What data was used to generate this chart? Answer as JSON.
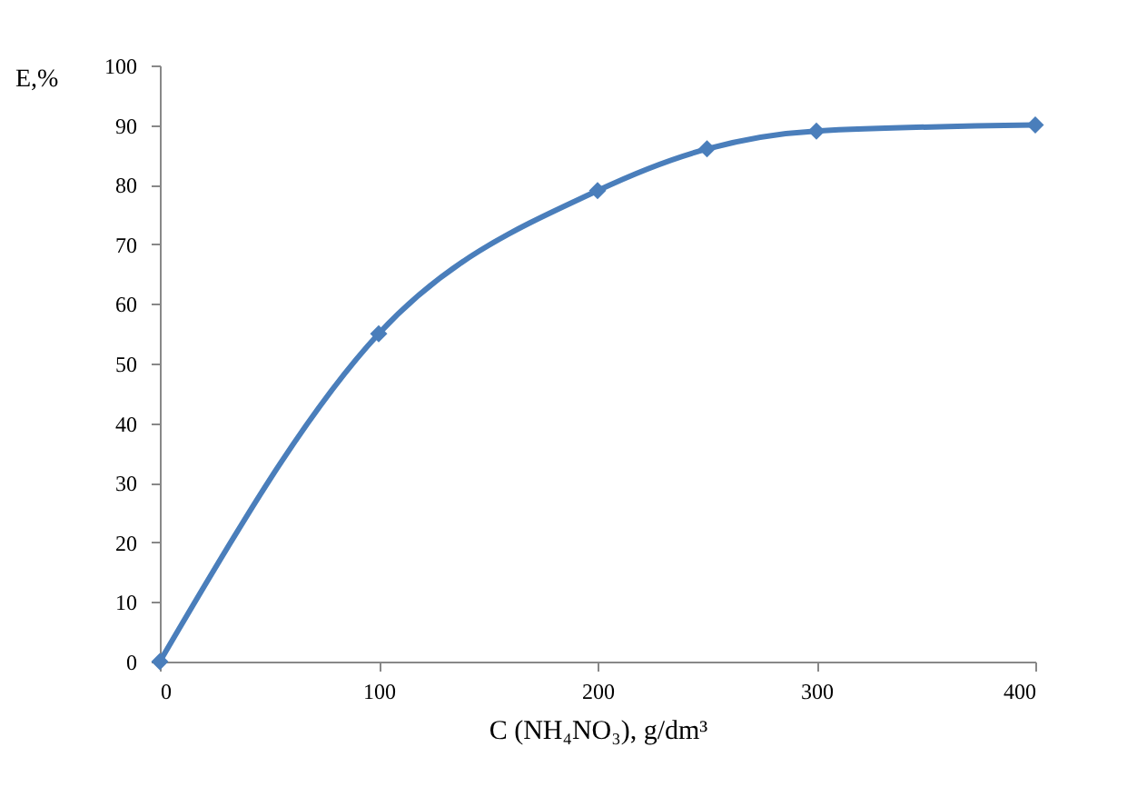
{
  "chart_data": {
    "type": "line",
    "xlabel": "C (NH₄NO₃), g/dm³",
    "ylabel": "E,%",
    "x": [
      0,
      100,
      200,
      250,
      300,
      400
    ],
    "series": [
      {
        "color": "#4a7ebb",
        "values": [
          0,
          55,
          79,
          86,
          89,
          90
        ]
      }
    ],
    "xlim": [
      0,
      400
    ],
    "xticks": [
      0,
      100,
      200,
      300,
      400
    ],
    "ylim": [
      0,
      100
    ],
    "yticks": [
      0,
      10,
      20,
      30,
      40,
      50,
      60,
      70,
      80,
      90,
      100
    ],
    "grid": false,
    "marker": "diamond",
    "line_style": "solid"
  }
}
